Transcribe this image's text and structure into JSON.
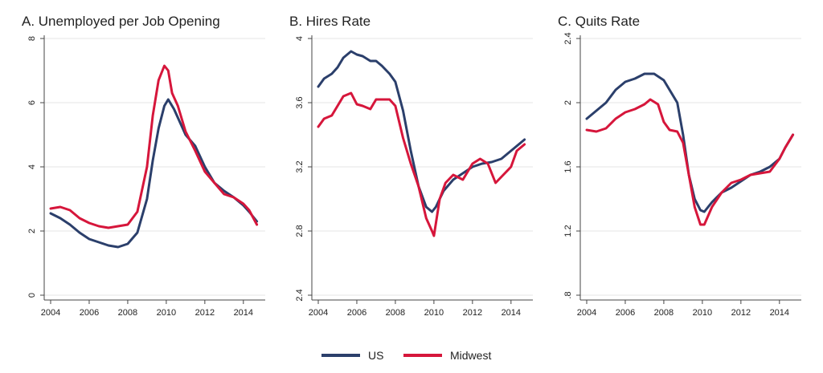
{
  "colors": {
    "us": "#2b3f6b",
    "midwest": "#d6163b",
    "grid": "#e6e6e6",
    "axis": "#444444"
  },
  "legend": {
    "us": "US",
    "midwest": "Midwest",
    "placement": "bottom-center"
  },
  "chart_data": [
    {
      "type": "line",
      "title": "A. Unemployed per Job Opening",
      "xlabel": "",
      "ylabel": "",
      "xlim": [
        2004,
        2014.8
      ],
      "ylim": [
        0,
        8
      ],
      "yticks": [
        0,
        2,
        4,
        6,
        8
      ],
      "ytick_labels": [
        "0",
        "2",
        "4",
        "6",
        "8"
      ],
      "xticks": [
        2004,
        2006,
        2008,
        2010,
        2012,
        2014
      ],
      "xtick_labels": [
        "2004",
        "2006",
        "2008",
        "2010",
        "2012",
        "2014"
      ],
      "grid": true,
      "series": [
        {
          "name": "US",
          "color_key": "us",
          "x": [
            2004,
            2004.5,
            2005,
            2005.5,
            2006,
            2006.5,
            2007,
            2007.5,
            2008,
            2008.5,
            2009,
            2009.3,
            2009.6,
            2009.9,
            2010.1,
            2010.4,
            2010.7,
            2011,
            2011.5,
            2012,
            2012.5,
            2013,
            2013.5,
            2014,
            2014.3,
            2014.7
          ],
          "y": [
            2.55,
            2.4,
            2.2,
            1.95,
            1.75,
            1.65,
            1.55,
            1.5,
            1.6,
            1.95,
            3.0,
            4.2,
            5.2,
            5.9,
            6.1,
            5.8,
            5.4,
            5.0,
            4.65,
            4.0,
            3.5,
            3.25,
            3.05,
            2.8,
            2.6,
            2.3
          ]
        },
        {
          "name": "Midwest",
          "color_key": "midwest",
          "x": [
            2004,
            2004.5,
            2005,
            2005.5,
            2006,
            2006.5,
            2007,
            2007.5,
            2008,
            2008.5,
            2009,
            2009.3,
            2009.6,
            2009.9,
            2010.1,
            2010.3,
            2010.6,
            2011,
            2011.5,
            2012,
            2012.5,
            2013,
            2013.5,
            2014,
            2014.3,
            2014.7
          ],
          "y": [
            2.7,
            2.75,
            2.65,
            2.4,
            2.25,
            2.15,
            2.1,
            2.15,
            2.2,
            2.6,
            4.0,
            5.6,
            6.7,
            7.15,
            7.0,
            6.3,
            5.9,
            5.1,
            4.5,
            3.85,
            3.5,
            3.15,
            3.05,
            2.85,
            2.65,
            2.2
          ]
        }
      ]
    },
    {
      "type": "line",
      "title": "B. Hires Rate",
      "xlabel": "",
      "ylabel": "",
      "xlim": [
        2004,
        2014.8
      ],
      "ylim": [
        2.4,
        4.0
      ],
      "yticks": [
        2.4,
        2.8,
        3.2,
        3.6,
        4.0
      ],
      "ytick_labels": [
        "2.4",
        "2.8",
        "3.2",
        "3.6",
        "4"
      ],
      "xticks": [
        2004,
        2006,
        2008,
        2010,
        2012,
        2014
      ],
      "xtick_labels": [
        "2004",
        "2006",
        "2008",
        "2010",
        "2012",
        "2014"
      ],
      "grid": true,
      "series": [
        {
          "name": "US",
          "color_key": "us",
          "x": [
            2004,
            2004.3,
            2004.7,
            2005,
            2005.3,
            2005.7,
            2006,
            2006.3,
            2006.7,
            2007,
            2007.3,
            2007.7,
            2008,
            2008.4,
            2008.8,
            2009.2,
            2009.6,
            2009.9,
            2010.1,
            2010.5,
            2011,
            2011.5,
            2012,
            2012.5,
            2013,
            2013.5,
            2014,
            2014.3,
            2014.7
          ],
          "y": [
            3.7,
            3.75,
            3.78,
            3.82,
            3.88,
            3.92,
            3.9,
            3.89,
            3.86,
            3.86,
            3.83,
            3.78,
            3.73,
            3.55,
            3.3,
            3.08,
            2.95,
            2.92,
            2.95,
            3.05,
            3.12,
            3.16,
            3.2,
            3.22,
            3.23,
            3.25,
            3.3,
            3.33,
            3.37
          ]
        },
        {
          "name": "Midwest",
          "color_key": "midwest",
          "x": [
            2004,
            2004.3,
            2004.7,
            2005,
            2005.3,
            2005.7,
            2006,
            2006.3,
            2006.7,
            2007,
            2007.3,
            2007.7,
            2008,
            2008.4,
            2008.8,
            2009.2,
            2009.6,
            2009.9,
            2010,
            2010.3,
            2010.6,
            2011,
            2011.5,
            2012,
            2012.4,
            2012.8,
            2013.2,
            2013.6,
            2014,
            2014.3,
            2014.7
          ],
          "y": [
            3.45,
            3.5,
            3.52,
            3.58,
            3.64,
            3.66,
            3.59,
            3.58,
            3.56,
            3.62,
            3.62,
            3.62,
            3.58,
            3.38,
            3.22,
            3.08,
            2.88,
            2.8,
            2.77,
            3.0,
            3.1,
            3.15,
            3.12,
            3.22,
            3.25,
            3.22,
            3.1,
            3.15,
            3.2,
            3.3,
            3.34
          ]
        }
      ]
    },
    {
      "type": "line",
      "title": "C. Quits Rate",
      "xlabel": "",
      "ylabel": "",
      "xlim": [
        2004,
        2014.8
      ],
      "ylim": [
        0.8,
        2.4
      ],
      "yticks": [
        0.8,
        1.2,
        1.6,
        2.0,
        2.4
      ],
      "ytick_labels": [
        ".8",
        "1.2",
        "1.6",
        "2",
        "2.4"
      ],
      "xticks": [
        2004,
        2006,
        2008,
        2010,
        2012,
        2014
      ],
      "xtick_labels": [
        "2004",
        "2006",
        "2008",
        "2010",
        "2012",
        "2014"
      ],
      "grid": true,
      "series": [
        {
          "name": "US",
          "color_key": "us",
          "x": [
            2004,
            2004.5,
            2005,
            2005.5,
            2006,
            2006.5,
            2007,
            2007.5,
            2008,
            2008.3,
            2008.7,
            2009,
            2009.3,
            2009.6,
            2009.9,
            2010.1,
            2010.5,
            2011,
            2011.5,
            2012,
            2012.5,
            2013,
            2013.5,
            2014,
            2014.3,
            2014.7
          ],
          "y": [
            1.9,
            1.95,
            2.0,
            2.08,
            2.13,
            2.15,
            2.18,
            2.18,
            2.14,
            2.08,
            2.0,
            1.8,
            1.55,
            1.4,
            1.33,
            1.32,
            1.38,
            1.44,
            1.47,
            1.51,
            1.55,
            1.57,
            1.6,
            1.65,
            1.72,
            1.8
          ]
        },
        {
          "name": "Midwest",
          "color_key": "midwest",
          "x": [
            2004,
            2004.5,
            2005,
            2005.5,
            2006,
            2006.5,
            2007,
            2007.3,
            2007.7,
            2008,
            2008.3,
            2008.7,
            2009,
            2009.3,
            2009.6,
            2009.9,
            2010.1,
            2010.5,
            2011,
            2011.5,
            2012,
            2012.5,
            2013,
            2013.5,
            2014,
            2014.3,
            2014.7
          ],
          "y": [
            1.83,
            1.82,
            1.84,
            1.9,
            1.94,
            1.96,
            1.99,
            2.02,
            1.99,
            1.88,
            1.83,
            1.82,
            1.75,
            1.55,
            1.35,
            1.24,
            1.24,
            1.35,
            1.44,
            1.5,
            1.52,
            1.55,
            1.56,
            1.57,
            1.65,
            1.72,
            1.8
          ]
        }
      ]
    }
  ]
}
